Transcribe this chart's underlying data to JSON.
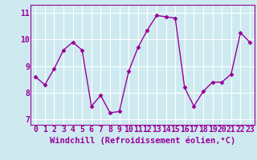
{
  "x": [
    0,
    1,
    2,
    3,
    4,
    5,
    6,
    7,
    8,
    9,
    10,
    11,
    12,
    13,
    14,
    15,
    16,
    17,
    18,
    19,
    20,
    21,
    22,
    23
  ],
  "y": [
    8.6,
    8.3,
    8.9,
    9.6,
    9.9,
    9.6,
    7.5,
    7.9,
    7.25,
    7.3,
    8.8,
    9.7,
    10.35,
    10.9,
    10.85,
    10.8,
    8.2,
    7.5,
    8.05,
    8.4,
    8.4,
    8.7,
    10.25,
    9.9
  ],
  "line_color": "#990099",
  "marker": "D",
  "marker_size": 2.5,
  "xlabel": "Windchill (Refroidissement éolien,°C)",
  "xlabel_fontsize": 7.5,
  "xtick_labels": [
    "0",
    "1",
    "2",
    "3",
    "4",
    "5",
    "6",
    "7",
    "8",
    "9",
    "10",
    "11",
    "12",
    "13",
    "14",
    "15",
    "16",
    "17",
    "18",
    "19",
    "20",
    "21",
    "22",
    "23"
  ],
  "xlim": [
    -0.5,
    23.5
  ],
  "ylim": [
    6.8,
    11.3
  ],
  "yticks": [
    7,
    8,
    9,
    10,
    11
  ],
  "background_color": "#ceeaf0",
  "grid_color": "#b0d8e8",
  "tick_fontsize": 7,
  "line_width": 1.0
}
